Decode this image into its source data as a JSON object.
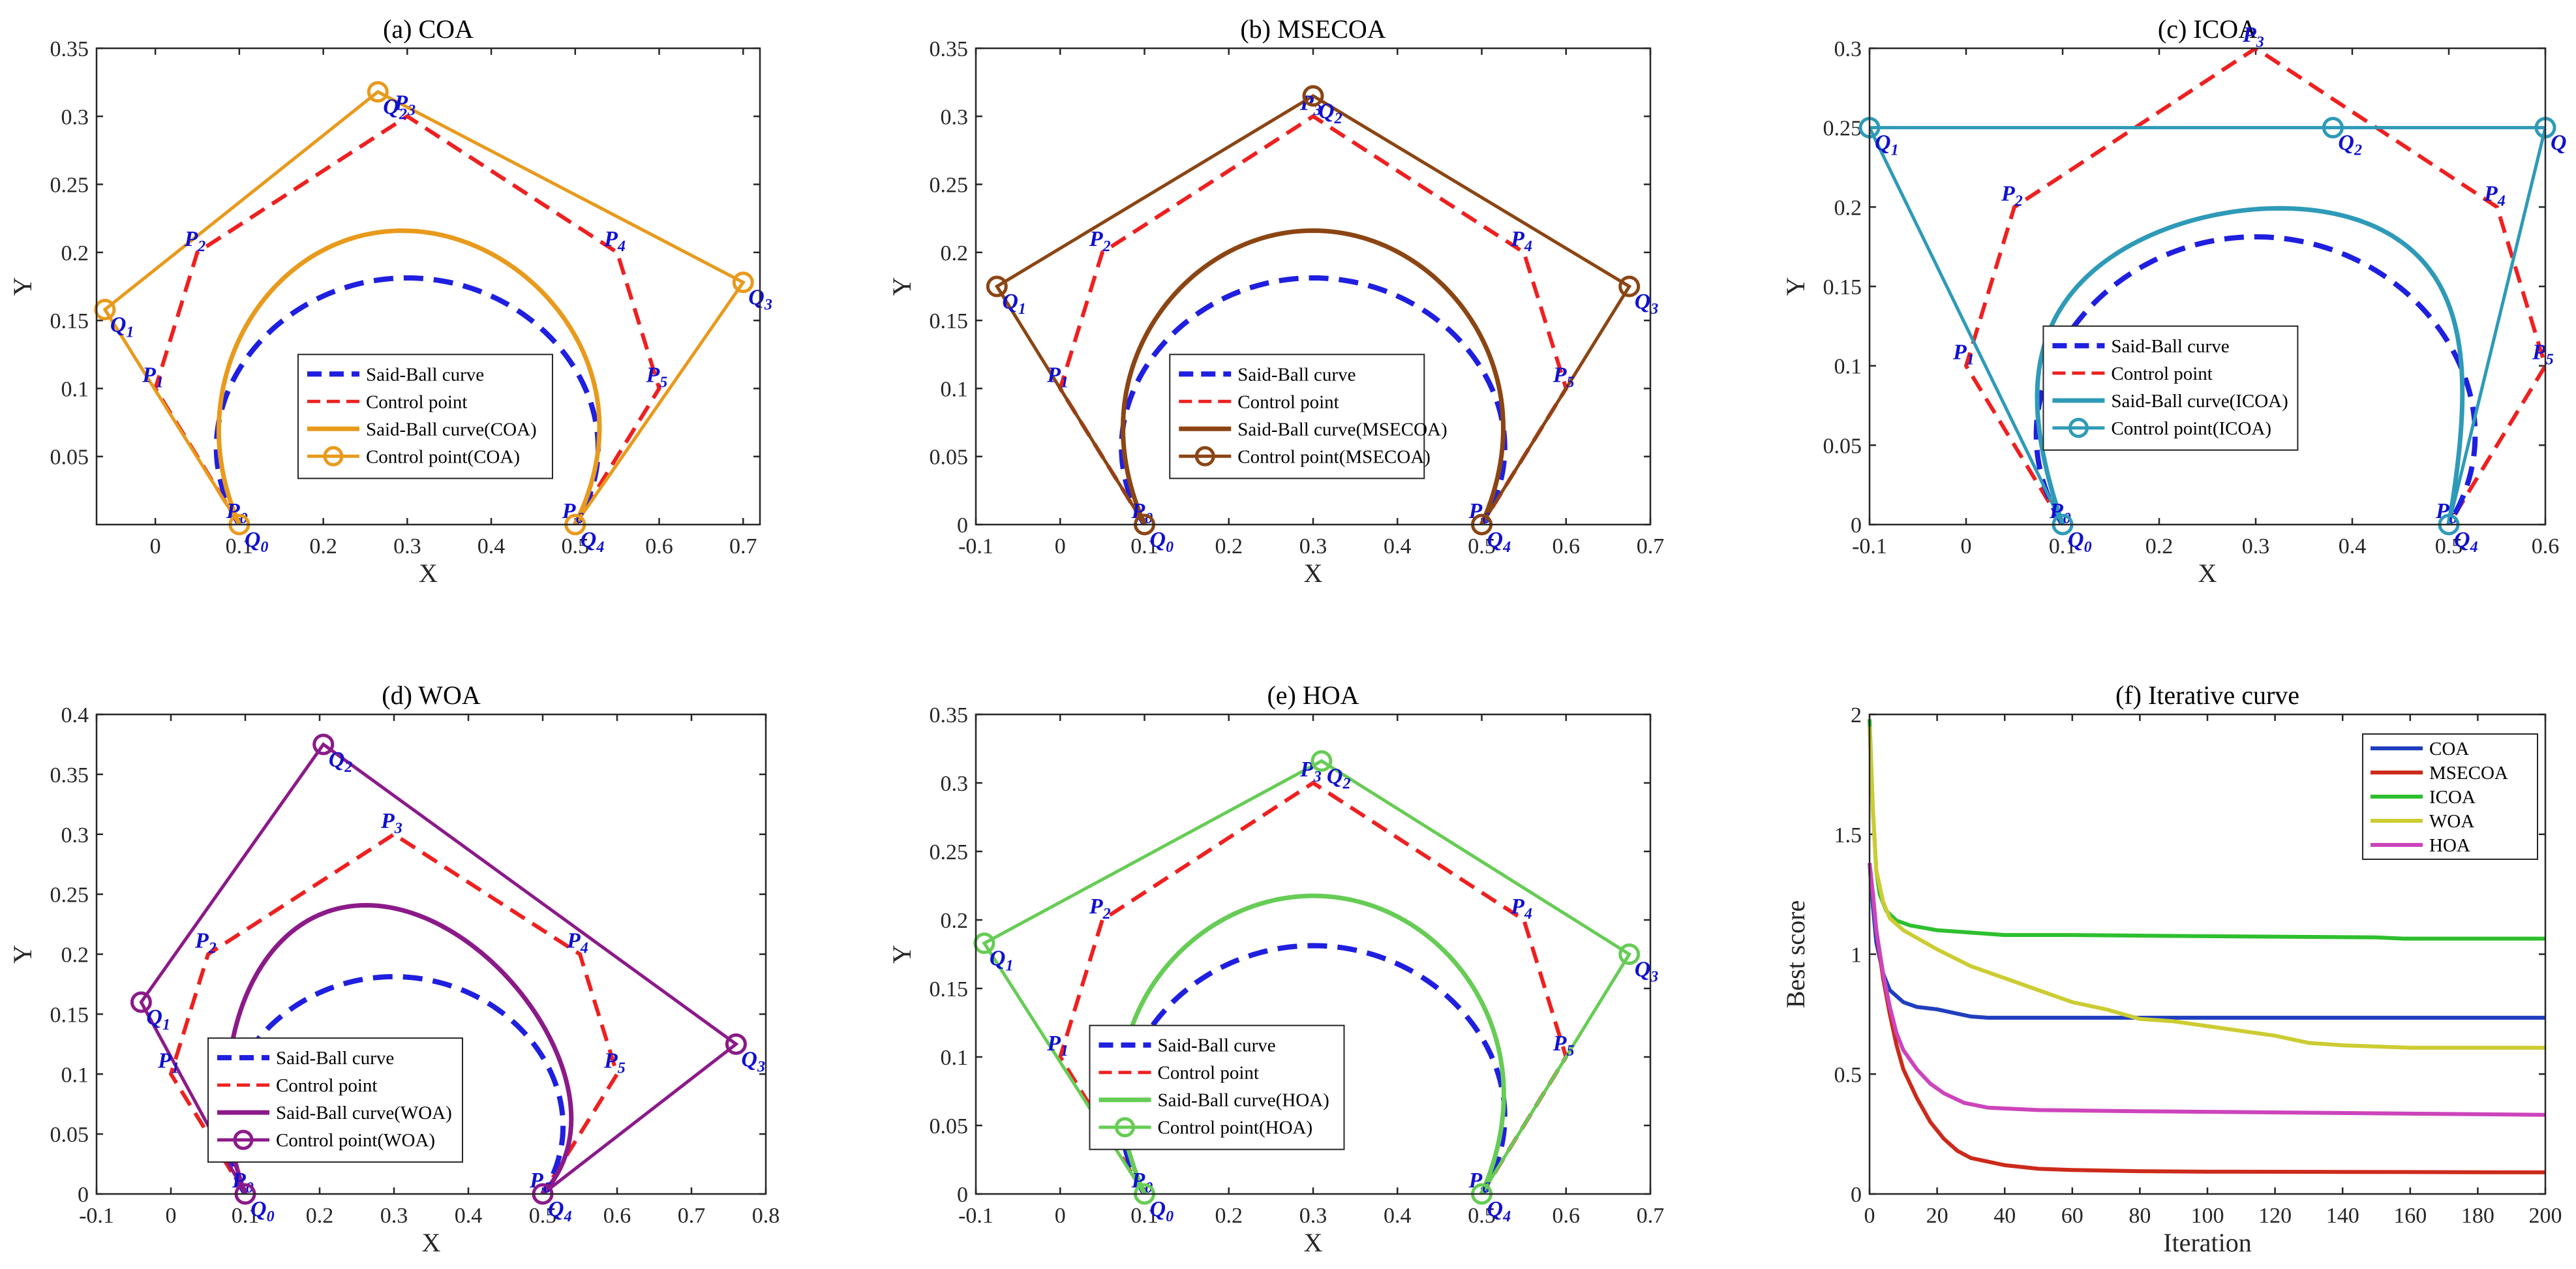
{
  "chart_data": [
    {
      "id": "a",
      "type": "line",
      "title": "(a) COA",
      "xlabel": "X",
      "ylabel": "Y",
      "xlim": [
        -0.07,
        0.72
      ],
      "ylim": [
        0,
        0.35
      ],
      "xticks": [
        0,
        0.1,
        0.2,
        0.3,
        0.4,
        0.5,
        0.6,
        0.7
      ],
      "xticklabels": [
        "0",
        "0.1",
        "0.2",
        "0.3",
        "0.4",
        "0.5",
        "0.6",
        "0.7"
      ],
      "yticks": [
        0.05,
        0.1,
        0.15,
        0.2,
        0.25,
        0.3,
        0.35
      ],
      "yticklabels": [
        "0.05",
        "0.1",
        "0.15",
        "0.2",
        "0.25",
        "0.3",
        "0.35"
      ],
      "color": "#E89A1C",
      "legend_label_curve": "Said-Ball curve(COA)",
      "legend_label_ctrl": "Control point(COA)",
      "legend": {
        "x0": 0.17,
        "y_top": 0.125
      },
      "q": [
        [
          0.1,
          0.0
        ],
        [
          -0.06,
          0.158
        ],
        [
          0.265,
          0.318
        ],
        [
          0.7,
          0.178
        ],
        [
          0.5,
          0.0
        ]
      ],
      "q_labels": [
        "Q0",
        "Q1",
        "Q2",
        "Q3",
        "Q4"
      ]
    },
    {
      "id": "b",
      "type": "line",
      "title": "(b) MSECOA",
      "xlabel": "X",
      "ylabel": "Y",
      "xlim": [
        -0.1,
        0.7
      ],
      "ylim": [
        0,
        0.35
      ],
      "xticks": [
        -0.1,
        0,
        0.1,
        0.2,
        0.3,
        0.4,
        0.5,
        0.6,
        0.7
      ],
      "xticklabels": [
        "-0.1",
        "0",
        "0.1",
        "0.2",
        "0.3",
        "0.4",
        "0.5",
        "0.6",
        "0.7"
      ],
      "yticks": [
        0,
        0.05,
        0.1,
        0.15,
        0.2,
        0.25,
        0.3,
        0.35
      ],
      "yticklabels": [
        "0",
        "0.05",
        "0.1",
        "0.15",
        "0.2",
        "0.25",
        "0.3",
        "0.35"
      ],
      "color": "#8B4513",
      "legend_label_curve": "Said-Ball curve(MSECOA)",
      "legend_label_ctrl": "Control point(MSECOA)",
      "legend": {
        "x0": 0.13,
        "y_top": 0.125
      },
      "q": [
        [
          0.1,
          0.0
        ],
        [
          -0.075,
          0.175
        ],
        [
          0.3,
          0.315
        ],
        [
          0.675,
          0.175
        ],
        [
          0.5,
          0.0
        ]
      ],
      "q_labels": [
        "Q0",
        "Q1",
        "Q2",
        "Q3",
        "Q4"
      ]
    },
    {
      "id": "c",
      "type": "line",
      "title": "(c) ICOA",
      "xlabel": "X",
      "ylabel": "Y",
      "xlim": [
        -0.1,
        0.6
      ],
      "ylim": [
        0,
        0.3
      ],
      "xticks": [
        -0.1,
        0,
        0.1,
        0.2,
        0.3,
        0.4,
        0.5,
        0.6
      ],
      "xticklabels": [
        "-0.1",
        "0",
        "0.1",
        "0.2",
        "0.3",
        "0.4",
        "0.5",
        "0.6"
      ],
      "yticks": [
        0,
        0.05,
        0.1,
        0.15,
        0.2,
        0.25,
        0.3
      ],
      "yticklabels": [
        "0",
        "0.05",
        "0.1",
        "0.15",
        "0.2",
        "0.25",
        "0.3"
      ],
      "color": "#2E9AB8",
      "legend_label_curve": "Said-Ball curve(ICOA)",
      "legend_label_ctrl": "Control point(ICOA)",
      "legend": {
        "x0": 0.08,
        "y_top": 0.125
      },
      "q": [
        [
          0.1,
          0.0
        ],
        [
          -0.1,
          0.25
        ],
        [
          0.38,
          0.25
        ],
        [
          0.6,
          0.25
        ],
        [
          0.5,
          0.0
        ]
      ],
      "q_labels": [
        "Q0",
        "Q1",
        "Q2",
        "Q",
        "Q4"
      ]
    },
    {
      "id": "d",
      "type": "line",
      "title": "(d) WOA",
      "xlabel": "X",
      "ylabel": "Y",
      "xlim": [
        -0.1,
        0.8
      ],
      "ylim": [
        0,
        0.4
      ],
      "xticks": [
        -0.1,
        0,
        0.1,
        0.2,
        0.3,
        0.4,
        0.5,
        0.6,
        0.7,
        0.8
      ],
      "xticklabels": [
        "-0.1",
        "0",
        "0.1",
        "0.2",
        "0.3",
        "0.4",
        "0.5",
        "0.6",
        "0.7",
        "0.8"
      ],
      "yticks": [
        0,
        0.05,
        0.1,
        0.15,
        0.2,
        0.25,
        0.3,
        0.35,
        0.4
      ],
      "yticklabels": [
        "0",
        "0.05",
        "0.1",
        "0.15",
        "0.2",
        "0.25",
        "0.3",
        "0.35",
        "0.4"
      ],
      "color": "#8B1A89",
      "legend_label_curve": "Said-Ball curve(WOA)",
      "legend_label_ctrl": "Control point(WOA)",
      "legend": {
        "x0": 0.05,
        "y_top": 0.13
      },
      "q": [
        [
          0.1,
          0.0
        ],
        [
          -0.04,
          0.16
        ],
        [
          0.205,
          0.375
        ],
        [
          0.76,
          0.125
        ],
        [
          0.5,
          0.0
        ]
      ],
      "q_labels": [
        "Q0",
        "Q1",
        "Q2",
        "Q3",
        "Q4"
      ]
    },
    {
      "id": "e",
      "type": "line",
      "title": "(e) HOA",
      "xlabel": "X",
      "ylabel": "Y",
      "xlim": [
        -0.1,
        0.7
      ],
      "ylim": [
        0,
        0.35
      ],
      "xticks": [
        -0.1,
        0,
        0.1,
        0.2,
        0.3,
        0.4,
        0.5,
        0.6,
        0.7
      ],
      "xticklabels": [
        "-0.1",
        "0",
        "0.1",
        "0.2",
        "0.3",
        "0.4",
        "0.5",
        "0.6",
        "0.7"
      ],
      "yticks": [
        0,
        0.05,
        0.1,
        0.15,
        0.2,
        0.25,
        0.3,
        0.35
      ],
      "yticklabels": [
        "0",
        "0.05",
        "0.1",
        "0.15",
        "0.2",
        "0.25",
        "0.3",
        "0.35"
      ],
      "color": "#66CC55",
      "legend_label_curve": "Said-Ball curve(HOA)",
      "legend_label_ctrl": "Control point(HOA)",
      "legend": {
        "x0": 0.035,
        "y_top": 0.123
      },
      "q": [
        [
          0.1,
          0.0
        ],
        [
          -0.09,
          0.183
        ],
        [
          0.31,
          0.316
        ],
        [
          0.675,
          0.175
        ],
        [
          0.5,
          0.0
        ]
      ],
      "q_labels": [
        "Q0",
        "Q1",
        "Q2",
        "Q3",
        "Q4"
      ]
    }
  ],
  "shared_reference": {
    "said_ball_label": "Said-Ball curve",
    "said_ball_color": "#1F1FE0",
    "control_point_label": "Control point",
    "control_point_color": "#EE2020",
    "control_points": [
      [
        0.1,
        0.0
      ],
      [
        0.0,
        0.1
      ],
      [
        0.05,
        0.2
      ],
      [
        0.3,
        0.3
      ],
      [
        0.55,
        0.2
      ],
      [
        0.6,
        0.1
      ],
      [
        0.5,
        0.0
      ]
    ],
    "p_labels": [
      "P0",
      "P1",
      "P2",
      "P3",
      "P4",
      "P5",
      "P6"
    ]
  },
  "iterative": {
    "type": "line",
    "title": "(f) Iterative curve",
    "xlabel": "Iteration",
    "ylabel": "Best score",
    "xlim": [
      0,
      200
    ],
    "ylim": [
      0,
      2
    ],
    "xticks": [
      0,
      20,
      40,
      60,
      80,
      100,
      120,
      140,
      160,
      180,
      200
    ],
    "xticklabels": [
      "0",
      "20",
      "40",
      "60",
      "80",
      "100",
      "120",
      "140",
      "160",
      "180",
      "200"
    ],
    "yticks": [
      0,
      0.5,
      1,
      1.5,
      2
    ],
    "yticklabels": [
      "0",
      "0.5",
      "1",
      "1.5",
      "2"
    ],
    "series": [
      {
        "name": "COA",
        "color": "#1F3FBF",
        "x": [
          0,
          1,
          2,
          4,
          6,
          10,
          14,
          20,
          25,
          30,
          35,
          50,
          80,
          120,
          160,
          200
        ],
        "y": [
          1.38,
          1.2,
          1.05,
          0.92,
          0.85,
          0.8,
          0.78,
          0.77,
          0.755,
          0.74,
          0.735,
          0.735,
          0.735,
          0.735,
          0.735,
          0.735
        ]
      },
      {
        "name": "MSECOA",
        "color": "#CC2A1A",
        "x": [
          0,
          1,
          2,
          4,
          6,
          8,
          10,
          14,
          18,
          22,
          26,
          30,
          40,
          50,
          60,
          80,
          100,
          140,
          200
        ],
        "y": [
          1.38,
          1.25,
          1.1,
          0.9,
          0.75,
          0.62,
          0.52,
          0.4,
          0.3,
          0.23,
          0.18,
          0.15,
          0.12,
          0.105,
          0.1,
          0.095,
          0.093,
          0.092,
          0.09
        ]
      },
      {
        "name": "ICOA",
        "color": "#2EBF2E",
        "x": [
          0,
          1,
          2,
          3,
          5,
          8,
          12,
          20,
          30,
          40,
          60,
          100,
          150,
          158,
          200
        ],
        "y": [
          1.98,
          1.6,
          1.35,
          1.25,
          1.18,
          1.14,
          1.12,
          1.1,
          1.09,
          1.08,
          1.08,
          1.075,
          1.07,
          1.065,
          1.065
        ]
      },
      {
        "name": "WOA",
        "color": "#CCCC33",
        "x": [
          0,
          1,
          2,
          4,
          6,
          10,
          15,
          20,
          30,
          40,
          50,
          60,
          70,
          80,
          90,
          100,
          110,
          120,
          130,
          140,
          160,
          180,
          200
        ],
        "y": [
          1.95,
          1.6,
          1.35,
          1.22,
          1.15,
          1.1,
          1.06,
          1.02,
          0.95,
          0.9,
          0.85,
          0.8,
          0.77,
          0.73,
          0.72,
          0.7,
          0.68,
          0.66,
          0.63,
          0.62,
          0.61,
          0.61,
          0.61
        ]
      },
      {
        "name": "HOA",
        "color": "#CC44BB",
        "x": [
          0,
          1,
          2,
          4,
          6,
          8,
          10,
          14,
          18,
          22,
          28,
          35,
          50,
          80,
          120,
          160,
          200
        ],
        "y": [
          1.38,
          1.25,
          1.1,
          0.92,
          0.78,
          0.67,
          0.6,
          0.52,
          0.46,
          0.42,
          0.38,
          0.36,
          0.35,
          0.345,
          0.34,
          0.335,
          0.33
        ]
      }
    ]
  }
}
